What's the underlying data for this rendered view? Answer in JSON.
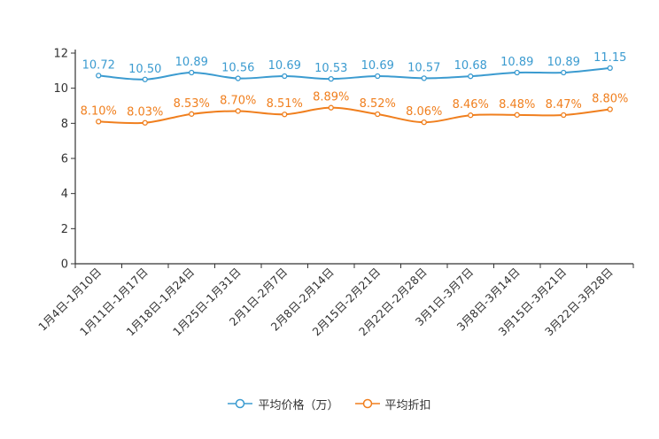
{
  "chart_data": {
    "type": "line",
    "title": "",
    "xlabel": "",
    "ylabel": "",
    "ylim": [
      0,
      12
    ],
    "yticks": [
      0,
      2,
      4,
      6,
      8,
      10,
      12
    ],
    "grid": false,
    "legend_position": "bottom-center",
    "categories": [
      "1月4日-1月10日",
      "1月11日-1月17日",
      "1月18日-1月24日",
      "1月25日-1月31日",
      "2月1日-2月7日",
      "2月8日-2月14日",
      "2月15日-2月21日",
      "2月22日-2月28日",
      "3月1日-3月7日",
      "3月8日-3月14日",
      "3月15日-3月21日",
      "3月22日-3月28日"
    ],
    "series": [
      {
        "name": "平均价格（万）",
        "color": "#3b9bd0",
        "values": [
          10.72,
          10.5,
          10.89,
          10.56,
          10.69,
          10.53,
          10.69,
          10.57,
          10.68,
          10.89,
          10.89,
          11.15
        ],
        "labels": [
          "10.72",
          "10.50",
          "10.89",
          "10.56",
          "10.69",
          "10.53",
          "10.69",
          "10.57",
          "10.68",
          "10.89",
          "10.89",
          "11.15"
        ]
      },
      {
        "name": "平均折扣",
        "color": "#f07f1e",
        "values": [
          8.1,
          8.03,
          8.53,
          8.7,
          8.51,
          8.89,
          8.52,
          8.06,
          8.46,
          8.48,
          8.47,
          8.8
        ],
        "labels": [
          "8.10%",
          "8.03%",
          "8.53%",
          "8.70%",
          "8.51%",
          "8.89%",
          "8.52%",
          "8.06%",
          "8.46%",
          "8.48%",
          "8.47%",
          "8.80%"
        ]
      }
    ]
  }
}
